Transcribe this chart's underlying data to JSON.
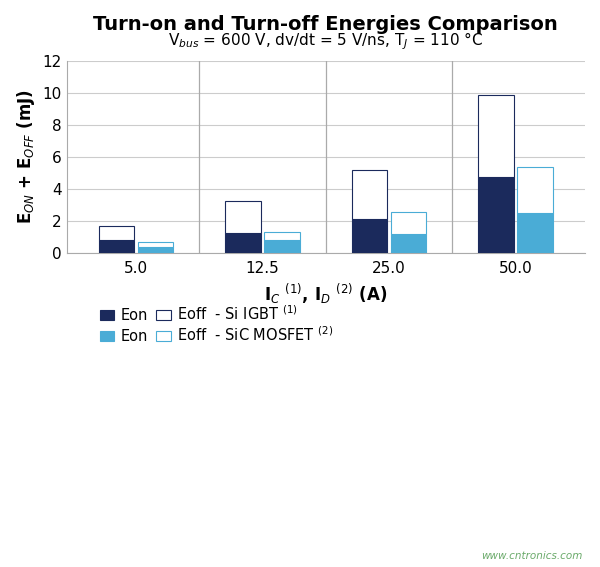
{
  "title": "Turn-on and Turn-off Energies Comparison",
  "categories": [
    "5.0",
    "12.5",
    "25.0",
    "50.0"
  ],
  "ylim": [
    0,
    12
  ],
  "yticks": [
    0,
    2,
    4,
    6,
    8,
    10,
    12
  ],
  "igbt_eon": [
    0.78,
    1.25,
    2.1,
    4.75
  ],
  "igbt_eoff": [
    0.92,
    2.0,
    3.1,
    5.1
  ],
  "sic_eon": [
    0.38,
    0.78,
    1.15,
    2.48
  ],
  "sic_eoff": [
    0.28,
    0.55,
    1.38,
    2.85
  ],
  "igbt_eon_color": "#1b2a5c",
  "igbt_eoff_color": "#ffffff",
  "sic_eon_color": "#4aacd6",
  "sic_eoff_color": "#ffffff",
  "igbt_edge_color": "#1b2a5c",
  "sic_edge_color": "#4aacd6",
  "grid_color": "#cccccc",
  "vgrid_color": "#aaaaaa",
  "title_fontsize": 14,
  "subtitle_fontsize": 11,
  "axis_label_fontsize": 12,
  "tick_fontsize": 11,
  "legend_fontsize": 10.5,
  "bar_width": 0.28,
  "watermark": "www.cntronics.com"
}
